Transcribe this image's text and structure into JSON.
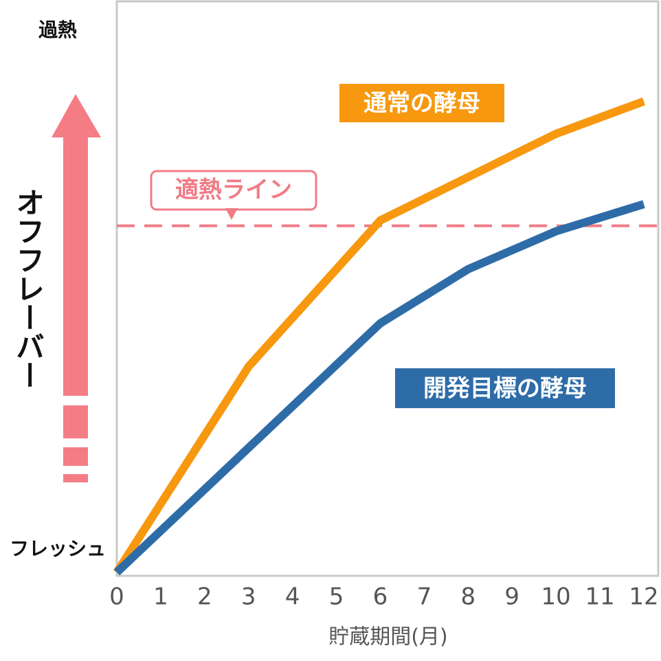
{
  "chart_data": {
    "type": "line",
    "x_label": "貯蔵期間(月)",
    "y_label": "オフフレーバー",
    "x": [
      0,
      3,
      6,
      8,
      10,
      12
    ],
    "series": [
      {
        "name": "通常の酵母",
        "color": "#f7980f",
        "values": [
          0,
          38,
          65,
          73,
          81,
          87
        ]
      },
      {
        "name": "開発目標の酵母",
        "color": "#2e6ca8",
        "values": [
          0,
          23,
          46,
          56,
          63,
          68
        ]
      }
    ],
    "threshold": {
      "label": "適熱ライン",
      "value": 64,
      "color": "#f07b85"
    },
    "xlim": [
      0,
      12
    ],
    "xticks": [
      0,
      1,
      2,
      3,
      4,
      5,
      6,
      7,
      8,
      9,
      10,
      11,
      12
    ],
    "ylim": [
      0,
      100
    ],
    "yticks": [
      {
        "value": 0,
        "label": "フレッシュ"
      },
      {
        "value": 100,
        "label": "過熱"
      }
    ]
  }
}
